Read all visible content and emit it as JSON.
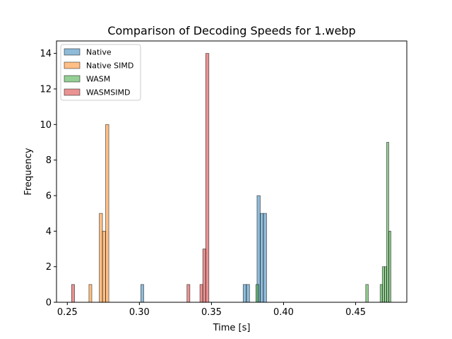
{
  "chart_data": {
    "type": "bar",
    "subtype": "histogram",
    "title": "Comparison of Decoding Speeds for 1.webp",
    "xlabel": "Time [s]",
    "ylabel": "Frequency",
    "xlim": [
      0.2425,
      0.4855
    ],
    "ylim": [
      0,
      14.7
    ],
    "xticks": [
      0.25,
      0.3,
      0.35,
      0.4,
      0.45
    ],
    "xtick_labels": [
      "0.25",
      "0.30",
      "0.35",
      "0.40",
      "0.45"
    ],
    "yticks": [
      0,
      2,
      4,
      6,
      8,
      10,
      12,
      14
    ],
    "ytick_labels": [
      "0",
      "2",
      "4",
      "6",
      "8",
      "10",
      "12",
      "14"
    ],
    "grid": false,
    "legend_position": "top-left",
    "series": [
      {
        "name": "Native",
        "color": "#1f77b4",
        "bins": [
          {
            "x0": 0.301,
            "x1": 0.303,
            "value": 1
          },
          {
            "x0": 0.372,
            "x1": 0.3742,
            "value": 1
          },
          {
            "x0": 0.3742,
            "x1": 0.3764,
            "value": 1
          },
          {
            "x0": 0.3816,
            "x1": 0.3838,
            "value": 6
          },
          {
            "x0": 0.3838,
            "x1": 0.386,
            "value": 5
          },
          {
            "x0": 0.386,
            "x1": 0.3882,
            "value": 5
          }
        ]
      },
      {
        "name": "Native SIMD",
        "color": "#ff7f0e",
        "bins": [
          {
            "x0": 0.265,
            "x1": 0.267,
            "value": 1
          },
          {
            "x0": 0.2722,
            "x1": 0.2744,
            "value": 5
          },
          {
            "x0": 0.2744,
            "x1": 0.2766,
            "value": 4
          },
          {
            "x0": 0.2766,
            "x1": 0.2788,
            "value": 10
          }
        ]
      },
      {
        "name": "WASM",
        "color": "#2ca02c",
        "bins": [
          {
            "x0": 0.3808,
            "x1": 0.3828,
            "value": 1
          },
          {
            "x0": 0.457,
            "x1": 0.4588,
            "value": 1
          },
          {
            "x0": 0.467,
            "x1": 0.4685,
            "value": 1
          },
          {
            "x0": 0.4685,
            "x1": 0.47,
            "value": 2
          },
          {
            "x0": 0.47,
            "x1": 0.4715,
            "value": 2
          },
          {
            "x0": 0.4715,
            "x1": 0.473,
            "value": 9
          },
          {
            "x0": 0.473,
            "x1": 0.4745,
            "value": 4
          }
        ]
      },
      {
        "name": "WASMSIMD",
        "color": "#d62728",
        "bins": [
          {
            "x0": 0.253,
            "x1": 0.255,
            "value": 1
          },
          {
            "x0": 0.333,
            "x1": 0.335,
            "value": 1
          },
          {
            "x0": 0.342,
            "x1": 0.344,
            "value": 1
          },
          {
            "x0": 0.344,
            "x1": 0.346,
            "value": 3
          },
          {
            "x0": 0.346,
            "x1": 0.3482,
            "value": 14
          }
        ]
      }
    ]
  }
}
